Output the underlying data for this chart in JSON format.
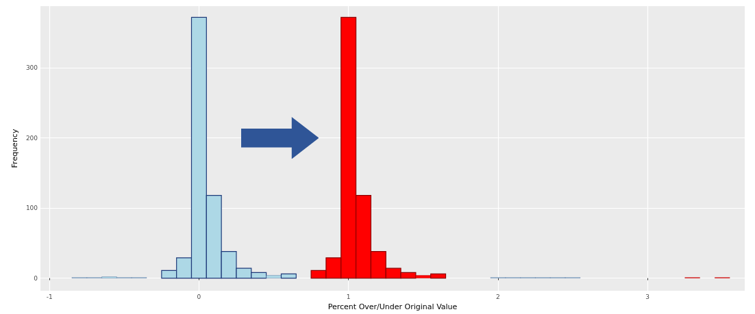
{
  "chart_data": {
    "type": "histogram",
    "xlabel": "Percent Over/Under Original Value",
    "ylabel": "Frequency",
    "bins": [
      -0.85,
      -0.75,
      -0.65,
      -0.55,
      -0.45,
      -0.35,
      -0.25,
      -0.15,
      -0.05,
      0.05,
      0.15,
      0.25,
      0.35,
      0.45,
      0.55,
      0.65,
      0.75,
      0.85,
      0.95,
      1.05,
      1.15,
      1.25,
      1.35,
      1.45,
      1.55,
      1.65,
      1.75,
      1.85,
      1.95,
      2.05,
      2.15,
      2.25,
      2.35,
      2.45,
      2.55,
      2.65,
      2.75,
      2.85,
      2.95,
      3.05,
      3.15,
      3.25,
      3.35,
      3.45,
      3.55
    ],
    "series": [
      {
        "color": "#ff0000",
        "values": [
          0,
          0,
          0,
          0,
          0,
          0,
          0,
          0,
          0,
          0,
          null,
          null,
          null,
          null,
          null,
          0,
          11,
          29,
          372,
          118,
          38,
          14,
          8,
          4,
          6,
          0,
          0,
          0,
          0,
          0,
          0,
          0,
          0,
          0,
          0,
          0,
          0,
          0,
          0,
          0,
          0,
          1,
          0,
          1
        ]
      },
      {
        "color": "#add8e6",
        "values": [
          1,
          1,
          2,
          1,
          1,
          0,
          11,
          29,
          372,
          118,
          38,
          14,
          8,
          4,
          6,
          0,
          0,
          0,
          0,
          0,
          0,
          0,
          0,
          0,
          0,
          0,
          0,
          0,
          1,
          1,
          1,
          1,
          1,
          1,
          0,
          0,
          0,
          0,
          0,
          0,
          0,
          0,
          0,
          0
        ]
      }
    ],
    "xlim": [
      -1.06,
      3.65
    ],
    "ylim": [
      -18,
      388
    ],
    "xticks": [
      -1,
      0,
      1,
      2,
      3
    ],
    "yticks": [
      0,
      100,
      200,
      300
    ],
    "grid": true
  }
}
